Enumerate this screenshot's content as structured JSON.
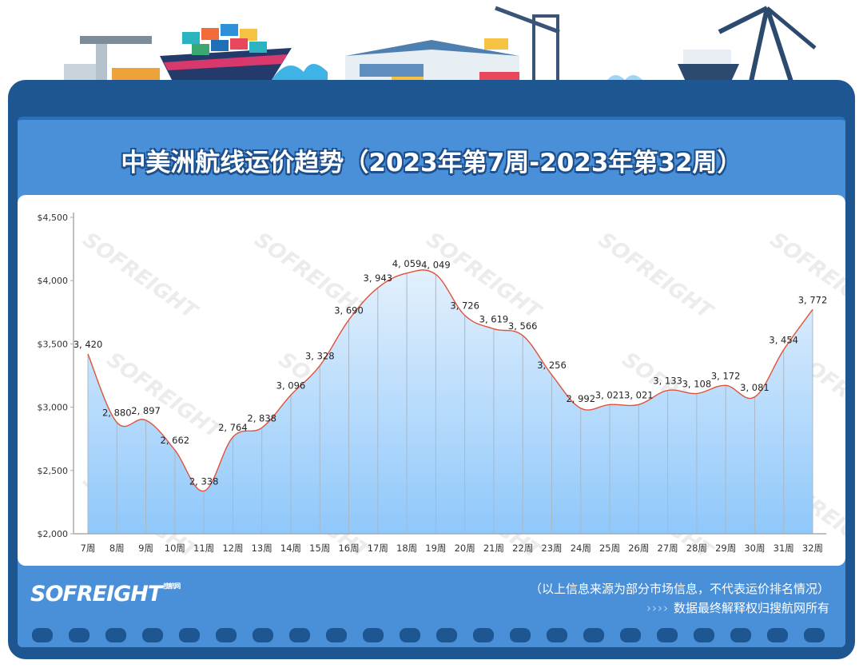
{
  "title": "中美洲航线运价趋势（2023年第7周-2023年第32周）",
  "footer": {
    "logo": "SOFREIGHT",
    "logo_sub": "搜航网",
    "note_source": "（以上信息来源为部分市场信息，不代表运价排名情况）",
    "note_rights_arrows": "››››",
    "note_rights": "数据最终解释权归搜航网所有"
  },
  "watermark": "SOFREIGHT",
  "colors": {
    "frame": "#1d5690",
    "panel": "#4a90d9",
    "line": "#e0533a",
    "area_top": "#e3f0fc",
    "area_bottom": "#8fc8fb"
  },
  "chart_data": {
    "type": "area",
    "title": "中美洲航线运价趋势（2023年第7周-2023年第32周）",
    "smooth": true,
    "categories": [
      "7周",
      "8周",
      "9周",
      "10周",
      "11周",
      "12周",
      "13周",
      "14周",
      "15周",
      "16周",
      "17周",
      "18周",
      "19周",
      "20周",
      "21周",
      "22周",
      "23周",
      "24周",
      "25周",
      "26周",
      "27周",
      "28周",
      "29周",
      "30周",
      "31周",
      "32周"
    ],
    "values": [
      3420,
      2880,
      2897,
      2662,
      2338,
      2764,
      2838,
      3096,
      3328,
      3690,
      3943,
      4059,
      4049,
      3726,
      3619,
      3566,
      3256,
      2992,
      3021,
      3021,
      3133,
      3108,
      3172,
      3081,
      3454,
      3772
    ],
    "data_labels": [
      "3, 420",
      "2, 880",
      "2, 897",
      "2, 662",
      "2, 338",
      "2, 764",
      "2, 838",
      "3, 096",
      "3, 328",
      "3, 690",
      "3, 943",
      "4, 059",
      "4, 049",
      "3, 726",
      "3, 619",
      "3, 566",
      "3, 256",
      "2, 992",
      "3, 021",
      "3, 021",
      "3, 133",
      "3, 108",
      "3, 172",
      "3, 081",
      "3, 454",
      "3, 772"
    ],
    "ylim": [
      2000,
      4500
    ],
    "yticks": [
      2000,
      2500,
      3000,
      3500,
      4000,
      4500
    ],
    "ytick_labels": [
      "$2,000",
      "$2,500",
      "$3,000",
      "$3,500",
      "$4,000",
      "$4,500"
    ],
    "xlabel": "",
    "ylabel": "",
    "grid": false
  }
}
